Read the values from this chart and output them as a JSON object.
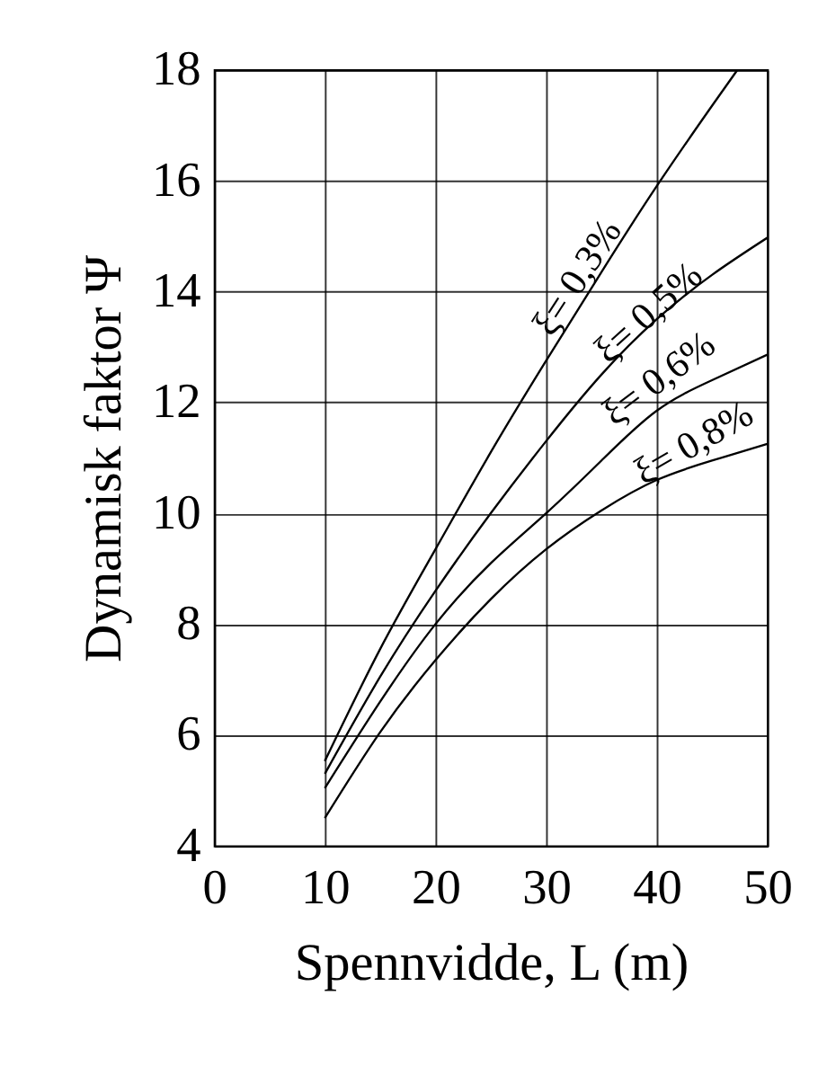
{
  "chart_data": {
    "type": "line",
    "xlabel": "Spennvidde, L (m)",
    "ylabel": "Dynamisk faktor  Ψ",
    "xlim": [
      0,
      50
    ],
    "xticks": [
      0,
      10,
      20,
      30,
      40,
      50
    ],
    "ylim": [
      4,
      18
    ],
    "yticks": [
      4,
      6,
      8,
      10,
      12,
      14,
      16,
      18
    ],
    "grid": true,
    "line_style": "solid",
    "series": [
      {
        "name": "ξ= 0,3%",
        "color": "#000000",
        "x": [
          10,
          15,
          20,
          25,
          30,
          35,
          40,
          45,
          47.3
        ],
        "values": [
          5.53,
          7.55,
          9.35,
          11.1,
          12.75,
          14.35,
          15.9,
          17.35,
          18
        ]
      },
      {
        "name": "ξ= 0,5%",
        "color": "#000000",
        "x": [
          10,
          15,
          20,
          25,
          30,
          35,
          40,
          45,
          50
        ],
        "values": [
          5.3,
          7.05,
          8.6,
          10.0,
          11.3,
          12.5,
          13.5,
          14.3,
          14.97
        ]
      },
      {
        "name": "ξ= 0,6%",
        "color": "#000000",
        "x": [
          10,
          15,
          20,
          25,
          30,
          35,
          40,
          45,
          50
        ],
        "values": [
          5.04,
          6.6,
          8.0,
          9.1,
          10.0,
          10.95,
          11.85,
          12.4,
          12.86
        ]
      },
      {
        "name": "ξ= 0,8%",
        "color": "#000000",
        "x": [
          10,
          15,
          20,
          25,
          30,
          35,
          40,
          45,
          50
        ],
        "values": [
          4.5,
          6.05,
          7.35,
          8.45,
          9.35,
          10.05,
          10.6,
          10.95,
          11.25
        ]
      }
    ]
  }
}
